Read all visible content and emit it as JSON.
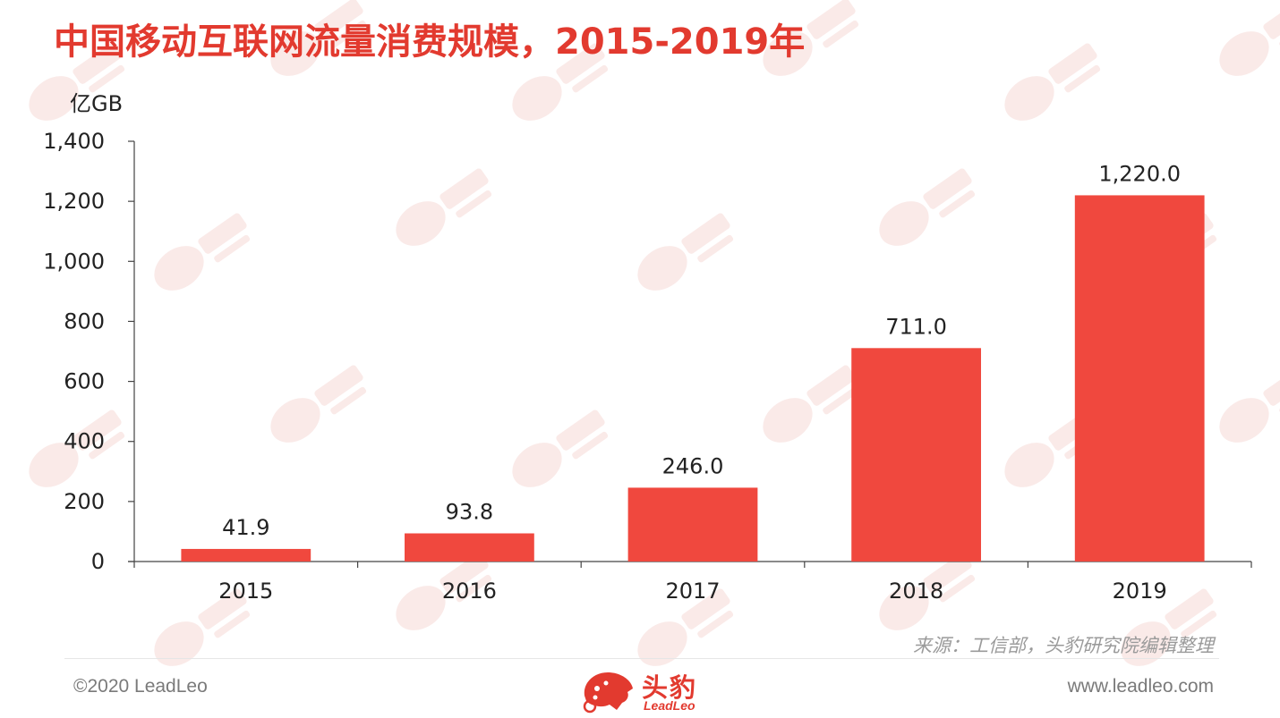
{
  "title": "中国移动互联网流量消费规模，2015-2019年",
  "chart_data": {
    "type": "bar",
    "title": "中国移动互联网流量消费规模，2015-2019年",
    "ylabel": "亿GB",
    "xlabel": "",
    "categories": [
      "2015",
      "2016",
      "2017",
      "2018",
      "2019"
    ],
    "values": [
      41.9,
      93.8,
      246.0,
      711.0,
      1220.0
    ],
    "value_labels": [
      "41.9",
      "93.8",
      "246.0",
      "711.0",
      "1,220.0"
    ],
    "ylim": [
      0,
      1400
    ],
    "yticks": [
      0,
      200,
      400,
      600,
      800,
      1000,
      1200,
      1400
    ],
    "ytick_labels": [
      "0",
      "200",
      "400",
      "600",
      "800",
      "1,000",
      "1,200",
      "1,400"
    ],
    "grid": false,
    "bar_color": "#f0483e"
  },
  "source": "来源：工信部，头豹研究院编辑整理",
  "footer": {
    "copyright": "©2020 LeadLeo",
    "website": "www.leadleo.com",
    "logo_cn": "头豹",
    "logo_en": "LeadLeo"
  },
  "colors": {
    "accent": "#e23a2f",
    "watermark": "#f6d6d3"
  }
}
